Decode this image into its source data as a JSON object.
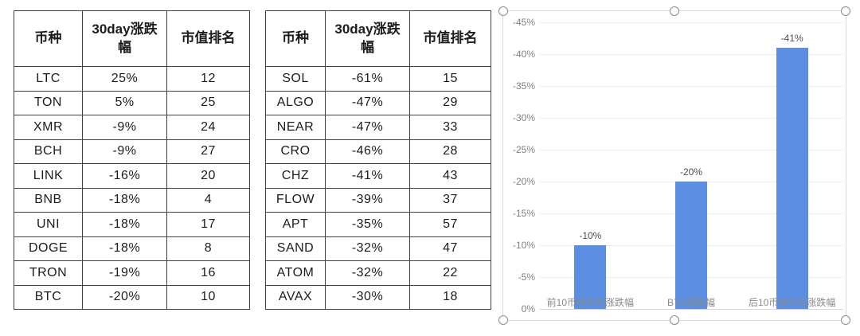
{
  "tables": [
    {
      "name": "top10-coins",
      "headers": [
        "币种",
        "30day涨跌幅",
        "市值排名"
      ],
      "rows": [
        [
          "LTC",
          "25%",
          "12"
        ],
        [
          "TON",
          "5%",
          "25"
        ],
        [
          "XMR",
          "-9%",
          "24"
        ],
        [
          "BCH",
          "-9%",
          "27"
        ],
        [
          "LINK",
          "-16%",
          "20"
        ],
        [
          "BNB",
          "-18%",
          "4"
        ],
        [
          "UNI",
          "-18%",
          "17"
        ],
        [
          "DOGE",
          "-18%",
          "8"
        ],
        [
          "TRON",
          "-19%",
          "16"
        ],
        [
          "BTC",
          "-20%",
          "10"
        ]
      ]
    },
    {
      "name": "bottom10-coins",
      "headers": [
        "币种",
        "30day涨跌幅",
        "市值排名"
      ],
      "rows": [
        [
          "SOL",
          "-61%",
          "15"
        ],
        [
          "ALGO",
          "-47%",
          "29"
        ],
        [
          "NEAR",
          "-47%",
          "33"
        ],
        [
          "CRO",
          "-46%",
          "28"
        ],
        [
          "CHZ",
          "-41%",
          "43"
        ],
        [
          "FLOW",
          "-39%",
          "37"
        ],
        [
          "APT",
          "-35%",
          "57"
        ],
        [
          "SAND",
          "-32%",
          "47"
        ],
        [
          "ATOM",
          "-32%",
          "22"
        ],
        [
          "AVAX",
          "-30%",
          "18"
        ]
      ]
    }
  ],
  "chart_data": {
    "type": "bar",
    "title": "",
    "xlabel": "",
    "ylabel": "",
    "categories": [
      "前10币种平均涨跌幅",
      "BTC涨跌幅",
      "后10币种平均涨跌幅"
    ],
    "values": [
      -10,
      -20,
      -41
    ],
    "data_labels": [
      "-10%",
      "-20%",
      "-41%"
    ],
    "y_ticks": [
      "-45%",
      "-40%",
      "-35%",
      "-30%",
      "-25%",
      "-20%",
      "-15%",
      "-10%",
      "-5%",
      "0%"
    ],
    "ylim": [
      0,
      -45
    ],
    "axis_inverted": true,
    "grid": true,
    "legend": "none",
    "bar_color": "#5b8ee0",
    "selected": true
  }
}
